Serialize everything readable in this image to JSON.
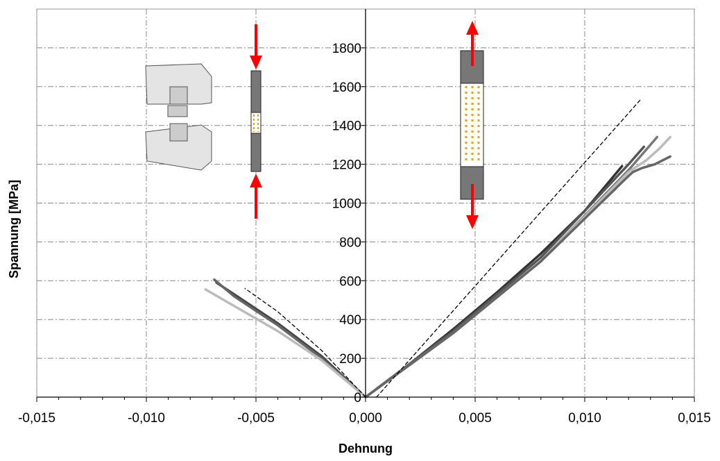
{
  "chart_data": {
    "type": "line",
    "x_label": "Dehnung",
    "y_label": "Spannung [MPa]",
    "xlim": [
      -0.015,
      0.015
    ],
    "ylim": [
      0,
      2000
    ],
    "xticks": [
      {
        "value": -0.015,
        "label": "-0,015"
      },
      {
        "value": -0.01,
        "label": "-0,010"
      },
      {
        "value": -0.005,
        "label": "-0,005"
      },
      {
        "value": 0,
        "label": "0,000"
      },
      {
        "value": 0.005,
        "label": "0,005"
      },
      {
        "value": 0.01,
        "label": "0,010"
      },
      {
        "value": 0.015,
        "label": "0,015"
      }
    ],
    "yticks": [
      0,
      200,
      400,
      600,
      800,
      1000,
      1200,
      1400,
      1600,
      1800
    ],
    "grid": true,
    "series": [
      {
        "color": "#333333",
        "style": "solid",
        "x": [
          0,
          0.002,
          0.004,
          0.006,
          0.008,
          0.01,
          0.0117
        ],
        "values": [
          0,
          170,
          350,
          540,
          740,
          960,
          1190
        ]
      },
      {
        "color": "#555555",
        "style": "solid",
        "x": [
          0,
          0.004,
          0.008,
          0.012,
          0.0127
        ],
        "values": [
          0,
          340,
          720,
          1200,
          1290
        ]
      },
      {
        "color": "#777777",
        "style": "solid",
        "x": [
          0,
          0.004,
          0.008,
          0.012,
          0.0133
        ],
        "values": [
          0,
          330,
          700,
          1170,
          1340
        ]
      },
      {
        "color": "#bbbbbb",
        "style": "solid",
        "x": [
          0,
          0.004,
          0.008,
          0.012,
          0.0128,
          0.0134,
          0.0139
        ],
        "values": [
          0,
          330,
          700,
          1160,
          1220,
          1280,
          1340
        ]
      },
      {
        "color": "#666666",
        "style": "solid",
        "x": [
          0,
          0.004,
          0.008,
          0.012,
          0.0122,
          0.0126,
          0.0132,
          0.0139
        ],
        "values": [
          0,
          330,
          700,
          1140,
          1160,
          1180,
          1200,
          1240
        ]
      },
      {
        "color": "#000000",
        "style": "dashed",
        "x": [
          0.0005,
          0.0126
        ],
        "values": [
          0,
          1540
        ]
      },
      {
        "color": "#444444",
        "style": "solid",
        "x": [
          0,
          -0.002,
          -0.004,
          -0.006,
          -0.0068
        ],
        "values": [
          0,
          210,
          380,
          530,
          590
        ]
      },
      {
        "color": "#666666",
        "style": "solid",
        "x": [
          0,
          -0.002,
          -0.004,
          -0.006,
          -0.0069
        ],
        "values": [
          0,
          200,
          370,
          520,
          605
        ]
      },
      {
        "color": "#bbbbbb",
        "style": "solid",
        "x": [
          0,
          -0.002,
          -0.004,
          -0.006,
          -0.0073
        ],
        "values": [
          0,
          190,
          340,
          470,
          555
        ]
      },
      {
        "color": "#000000",
        "style": "dashed",
        "x": [
          0,
          -0.002,
          -0.004,
          -0.0055
        ],
        "values": [
          0,
          240,
          440,
          560
        ]
      }
    ]
  }
}
